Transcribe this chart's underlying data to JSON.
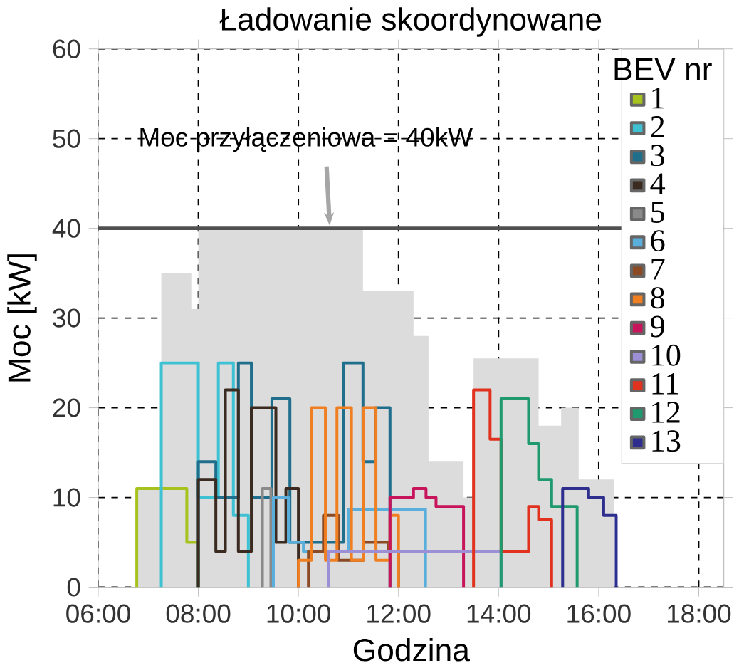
{
  "chart_data": {
    "type": "step",
    "title": "Ładowanie skoordynowane",
    "xlabel": "Godzina",
    "ylabel": "Moc [kW]",
    "legend_title": "BEV nr",
    "xlim": [
      6,
      18.5
    ],
    "ylim": [
      0,
      60
    ],
    "xticks": [
      {
        "value": 6,
        "label": "06:00"
      },
      {
        "value": 8,
        "label": "08:00"
      },
      {
        "value": 10,
        "label": "10:00"
      },
      {
        "value": 12,
        "label": "12:00"
      },
      {
        "value": 14,
        "label": "14:00"
      },
      {
        "value": 16,
        "label": "16:00"
      },
      {
        "value": 18,
        "label": "18:00"
      }
    ],
    "yticks": [
      0,
      10,
      20,
      30,
      40,
      50,
      60
    ],
    "grid": true,
    "legend": "top right",
    "line_style": "solid",
    "ref_lines": [
      {
        "axis": "y",
        "value": 40,
        "label": "Moc przyłączeniowa = 40kW",
        "color": "#505050"
      }
    ],
    "series": [
      {
        "type": "area",
        "color": "#dcdcdc",
        "x": [
          6.77,
          7.26,
          7.86,
          8.0,
          11.29,
          12.3,
          12.6,
          13.3,
          13.5,
          14.8,
          15.25,
          15.6,
          16.3
        ],
        "values": [
          11,
          35,
          31,
          40,
          33,
          28,
          14,
          10,
          25.5,
          18,
          20,
          12,
          0
        ]
      },
      {
        "name": "1",
        "color": "#a5c21f",
        "x": [
          6.77,
          6.77,
          7.77,
          8.0
        ],
        "values": [
          0,
          11,
          5,
          0
        ]
      },
      {
        "name": "2",
        "color": "#3ec1d3",
        "x": [
          7.26,
          7.26,
          8.0,
          8.4,
          8.7,
          9.0
        ],
        "values": [
          0,
          25,
          10,
          25,
          8,
          0
        ]
      },
      {
        "name": "3",
        "color": "#1f6e8c",
        "x": [
          8.0,
          8.0,
          8.35,
          8.8,
          9.06,
          9.47,
          9.83,
          10.9,
          11.29,
          11.54,
          11.83
        ],
        "values": [
          0,
          14,
          10,
          25,
          10,
          21,
          5,
          25,
          14,
          20,
          0
        ]
      },
      {
        "name": "4",
        "color": "#3a2a1f",
        "x": [
          8.0,
          8.0,
          8.35,
          8.54,
          8.8,
          9.06,
          9.55,
          9.75,
          10.0
        ],
        "values": [
          0,
          12,
          4,
          22,
          4,
          20,
          5,
          11,
          0
        ]
      },
      {
        "name": "5",
        "color": "#8a8a8a",
        "x": [
          9.28,
          9.28,
          9.45
        ],
        "values": [
          0,
          11,
          0
        ]
      },
      {
        "name": "6",
        "color": "#5aaedc",
        "x": [
          9.5,
          9.5,
          9.8,
          10.1,
          11.0,
          12.54
        ],
        "values": [
          0,
          10,
          5,
          4,
          8.7,
          0
        ]
      },
      {
        "name": "7",
        "color": "#8b4a23",
        "x": [
          10.2,
          10.2,
          10.5,
          10.8,
          11.3,
          11.8,
          12.0
        ],
        "values": [
          0,
          4,
          8,
          3,
          5,
          4,
          0
        ]
      },
      {
        "name": "8",
        "color": "#f07f22",
        "x": [
          10.0,
          10.0,
          10.26,
          10.54,
          10.77,
          11.06,
          11.3,
          11.55,
          11.83,
          12.0
        ],
        "values": [
          0,
          3,
          20,
          3,
          20,
          3,
          20,
          3,
          8,
          0
        ]
      },
      {
        "name": "9",
        "color": "#c8145a",
        "x": [
          11.83,
          11.83,
          12.3,
          12.55,
          12.75,
          13.3
        ],
        "values": [
          0,
          10,
          11,
          10,
          9,
          0
        ]
      },
      {
        "name": "10",
        "color": "#9c8fd6",
        "x": [
          10.6,
          10.6,
          14.05
        ],
        "values": [
          0,
          4,
          0
        ]
      },
      {
        "name": "11",
        "color": "#e0321e",
        "x": [
          13.5,
          13.5,
          13.83,
          14.05,
          14.6,
          14.8,
          15.06
        ],
        "values": [
          0,
          22,
          16.5,
          4,
          9,
          7.5,
          0
        ]
      },
      {
        "name": "12",
        "color": "#1e9a6e",
        "x": [
          14.05,
          14.05,
          14.6,
          14.8,
          15.06,
          15.57
        ],
        "values": [
          0,
          21,
          16,
          12,
          9,
          0
        ]
      },
      {
        "name": "13",
        "color": "#2e2e8f",
        "x": [
          15.28,
          15.28,
          15.8,
          16.1,
          16.35
        ],
        "values": [
          0,
          11,
          10,
          8,
          0
        ]
      }
    ]
  }
}
